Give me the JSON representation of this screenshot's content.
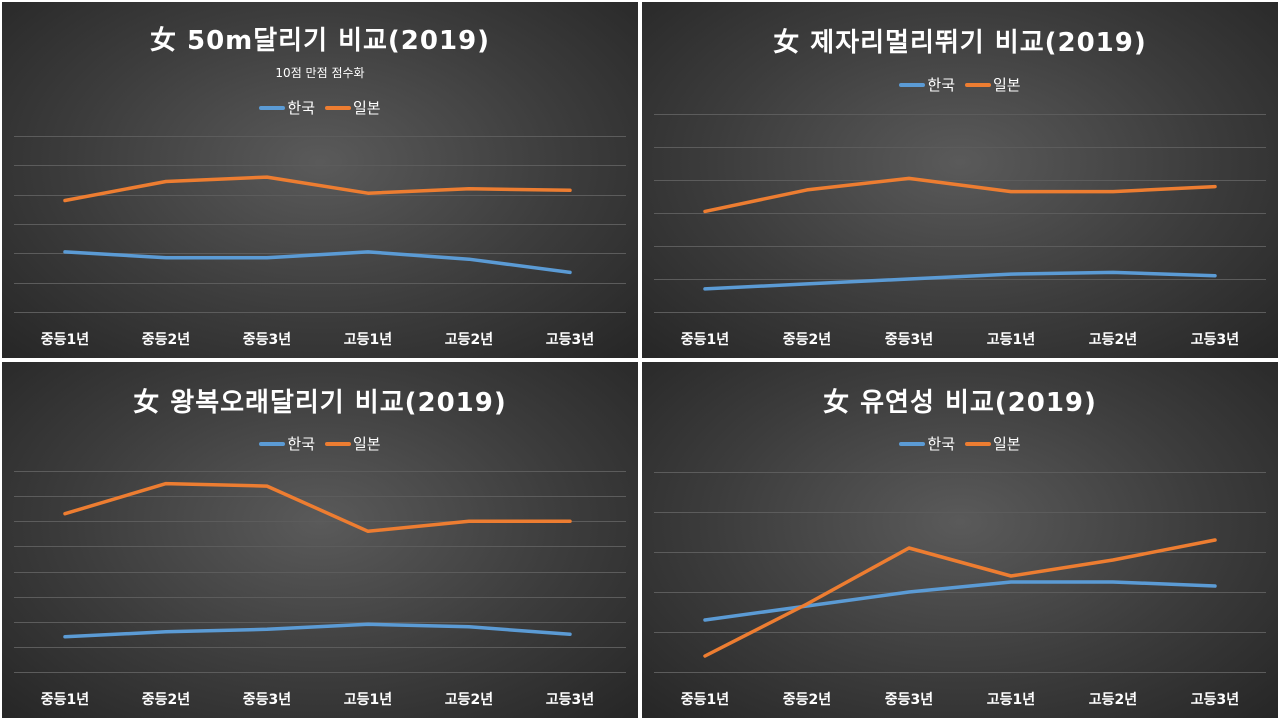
{
  "colors": {
    "korea": "#5b9bd5",
    "japan": "#ed7d31",
    "grid": "#5c5c5c"
  },
  "chart_data": [
    {
      "type": "line",
      "title": "女 50m달리기 비교(2019)",
      "subtitle": "10점 만점 점수화",
      "categories": [
        "중등1년",
        "중등2년",
        "중등3년",
        "고등1년",
        "고등2년",
        "고등3년"
      ],
      "series": [
        {
          "name": "한국",
          "values": [
            4.1,
            3.7,
            3.7,
            4.1,
            3.6,
            2.7
          ]
        },
        {
          "name": "일본",
          "values": [
            7.6,
            8.9,
            9.2,
            8.1,
            8.4,
            8.3
          ]
        }
      ],
      "ylim": [
        0,
        12
      ],
      "grid": true,
      "legend": "top"
    },
    {
      "type": "line",
      "title": "女 제자리멀리뛰기 비교(2019)",
      "categories": [
        "중등1년",
        "중등2년",
        "중등3년",
        "고등1년",
        "고등2년",
        "고등3년"
      ],
      "series": [
        {
          "name": "한국",
          "values": [
            1.4,
            1.7,
            2.0,
            2.3,
            2.4,
            2.2
          ]
        },
        {
          "name": "일본",
          "values": [
            6.1,
            7.4,
            8.1,
            7.3,
            7.3,
            7.6
          ]
        }
      ],
      "ylim": [
        0,
        12
      ],
      "grid": true,
      "legend": "top"
    },
    {
      "type": "line",
      "title": "女 왕복오래달리기 비교(2019)",
      "categories": [
        "중등1년",
        "중등2년",
        "중등3년",
        "고등1년",
        "고등2년",
        "고등3년"
      ],
      "series": [
        {
          "name": "한국",
          "values": [
            1.4,
            1.6,
            1.7,
            1.9,
            1.8,
            1.5
          ]
        },
        {
          "name": "일본",
          "values": [
            6.3,
            7.5,
            7.4,
            5.6,
            6.0,
            6.0
          ]
        }
      ],
      "ylim": [
        0,
        8
      ],
      "grid": true,
      "legend": "top"
    },
    {
      "type": "line",
      "title": "女 유연성 비교(2019)",
      "categories": [
        "중등1년",
        "중등2년",
        "중등3년",
        "고등1년",
        "고등2년",
        "고등3년"
      ],
      "series": [
        {
          "name": "한국",
          "values": [
            2.6,
            3.3,
            4.0,
            4.5,
            4.5,
            4.3
          ]
        },
        {
          "name": "일본",
          "values": [
            0.8,
            3.4,
            6.2,
            4.8,
            5.6,
            6.6
          ]
        }
      ],
      "ylim": [
        0,
        10
      ],
      "grid": true,
      "legend": "top"
    }
  ]
}
